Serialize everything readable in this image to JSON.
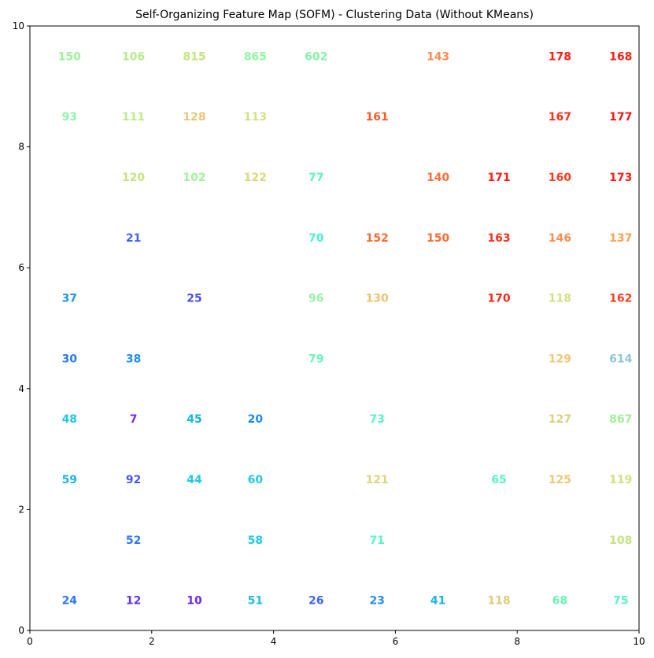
{
  "chart_data": {
    "type": "scatter",
    "title": "Self-Organizing Feature Map (SOFM) - Clustering Data (Without KMeans)",
    "xlabel": "",
    "ylabel": "",
    "xlim": [
      0,
      10
    ],
    "ylim": [
      0,
      10
    ],
    "xticks": [
      "0",
      "2",
      "4",
      "6",
      "8",
      "10"
    ],
    "yticks": [
      "0",
      "2",
      "4",
      "6",
      "8",
      "10"
    ],
    "grid": false,
    "points": [
      {
        "x": 0.65,
        "y": 9.5,
        "label": "150",
        "color": "#9bf29b"
      },
      {
        "x": 1.7,
        "y": 9.5,
        "label": "106",
        "color": "#b5ec8c"
      },
      {
        "x": 2.7,
        "y": 9.5,
        "label": "815",
        "color": "#c2e67e"
      },
      {
        "x": 3.7,
        "y": 9.5,
        "label": "865",
        "color": "#8ff7a0"
      },
      {
        "x": 4.7,
        "y": 9.5,
        "label": "602",
        "color": "#88f1aa"
      },
      {
        "x": 6.7,
        "y": 9.5,
        "label": "143",
        "color": "#ff8c4e"
      },
      {
        "x": 8.7,
        "y": 9.5,
        "label": "178",
        "color": "#ff1e14"
      },
      {
        "x": 9.7,
        "y": 9.5,
        "label": "168",
        "color": "#ff1e14"
      },
      {
        "x": 0.65,
        "y": 8.5,
        "label": "93",
        "color": "#8cf2aa"
      },
      {
        "x": 1.7,
        "y": 8.5,
        "label": "111",
        "color": "#bcec8b"
      },
      {
        "x": 2.7,
        "y": 8.5,
        "label": "128",
        "color": "#e6c878"
      },
      {
        "x": 3.7,
        "y": 8.5,
        "label": "113",
        "color": "#cfe382"
      },
      {
        "x": 5.7,
        "y": 8.5,
        "label": "161",
        "color": "#ff5a28"
      },
      {
        "x": 8.7,
        "y": 8.5,
        "label": "167",
        "color": "#ff2e1a"
      },
      {
        "x": 9.7,
        "y": 8.5,
        "label": "177",
        "color": "#ff1410"
      },
      {
        "x": 1.7,
        "y": 7.5,
        "label": "120",
        "color": "#c6e280"
      },
      {
        "x": 2.7,
        "y": 7.5,
        "label": "102",
        "color": "#a4f29a"
      },
      {
        "x": 3.7,
        "y": 7.5,
        "label": "122",
        "color": "#dcd77e"
      },
      {
        "x": 4.7,
        "y": 7.5,
        "label": "77",
        "color": "#5ef2c2"
      },
      {
        "x": 6.7,
        "y": 7.5,
        "label": "140",
        "color": "#ff6e3a"
      },
      {
        "x": 7.7,
        "y": 7.5,
        "label": "171",
        "color": "#ff1e14"
      },
      {
        "x": 8.7,
        "y": 7.5,
        "label": "160",
        "color": "#ff3c20"
      },
      {
        "x": 9.7,
        "y": 7.5,
        "label": "173",
        "color": "#ff1e14"
      },
      {
        "x": 1.7,
        "y": 6.5,
        "label": "21",
        "color": "#3c64ff"
      },
      {
        "x": 4.7,
        "y": 6.5,
        "label": "70",
        "color": "#4ef0d0"
      },
      {
        "x": 5.7,
        "y": 6.5,
        "label": "152",
        "color": "#ff6a32"
      },
      {
        "x": 6.7,
        "y": 6.5,
        "label": "150",
        "color": "#ff6a32"
      },
      {
        "x": 7.7,
        "y": 6.5,
        "label": "163",
        "color": "#ff2e1a"
      },
      {
        "x": 8.7,
        "y": 6.5,
        "label": "146",
        "color": "#ff8c50"
      },
      {
        "x": 9.7,
        "y": 6.5,
        "label": "137",
        "color": "#ffa050"
      },
      {
        "x": 0.65,
        "y": 5.5,
        "label": "37",
        "color": "#1e96e6"
      },
      {
        "x": 2.7,
        "y": 5.5,
        "label": "25",
        "color": "#4650f0"
      },
      {
        "x": 4.7,
        "y": 5.5,
        "label": "96",
        "color": "#96f2a2"
      },
      {
        "x": 5.7,
        "y": 5.5,
        "label": "130",
        "color": "#f0c070"
      },
      {
        "x": 7.7,
        "y": 5.5,
        "label": "170",
        "color": "#ff2814"
      },
      {
        "x": 8.7,
        "y": 5.5,
        "label": "118",
        "color": "#cde282"
      },
      {
        "x": 9.7,
        "y": 5.5,
        "label": "162",
        "color": "#ff3c1e"
      },
      {
        "x": 0.65,
        "y": 4.5,
        "label": "30",
        "color": "#2a78f0"
      },
      {
        "x": 1.7,
        "y": 4.5,
        "label": "38",
        "color": "#1e8cf0"
      },
      {
        "x": 4.7,
        "y": 4.5,
        "label": "79",
        "color": "#6cf2b8"
      },
      {
        "x": 8.7,
        "y": 4.5,
        "label": "129",
        "color": "#ecc878"
      },
      {
        "x": 9.7,
        "y": 4.5,
        "label": "614",
        "color": "#8cc8d8"
      },
      {
        "x": 0.65,
        "y": 3.5,
        "label": "48",
        "color": "#1ec8e6"
      },
      {
        "x": 1.7,
        "y": 3.5,
        "label": "7",
        "color": "#7828f0"
      },
      {
        "x": 2.7,
        "y": 3.5,
        "label": "45",
        "color": "#14b4e6"
      },
      {
        "x": 3.7,
        "y": 3.5,
        "label": "20",
        "color": "#148cf0"
      },
      {
        "x": 5.7,
        "y": 3.5,
        "label": "73",
        "color": "#5af2c8"
      },
      {
        "x": 8.7,
        "y": 3.5,
        "label": "127",
        "color": "#dcd07c"
      },
      {
        "x": 9.7,
        "y": 3.5,
        "label": "867",
        "color": "#a0ee98"
      },
      {
        "x": 0.65,
        "y": 2.5,
        "label": "59",
        "color": "#1eb4e6"
      },
      {
        "x": 1.7,
        "y": 2.5,
        "label": "92",
        "color": "#4a5af0"
      },
      {
        "x": 2.7,
        "y": 2.5,
        "label": "44",
        "color": "#1ec8e6"
      },
      {
        "x": 3.7,
        "y": 2.5,
        "label": "60",
        "color": "#1ec8e6"
      },
      {
        "x": 5.7,
        "y": 2.5,
        "label": "121",
        "color": "#dcd77e"
      },
      {
        "x": 7.7,
        "y": 2.5,
        "label": "65",
        "color": "#5af2c8"
      },
      {
        "x": 8.7,
        "y": 2.5,
        "label": "125",
        "color": "#ecc878"
      },
      {
        "x": 9.7,
        "y": 2.5,
        "label": "119",
        "color": "#cde282"
      },
      {
        "x": 1.7,
        "y": 1.5,
        "label": "52",
        "color": "#2a78f0"
      },
      {
        "x": 3.7,
        "y": 1.5,
        "label": "58",
        "color": "#1ec8e6"
      },
      {
        "x": 5.7,
        "y": 1.5,
        "label": "71",
        "color": "#5af2c8"
      },
      {
        "x": 9.7,
        "y": 1.5,
        "label": "108",
        "color": "#c6e280"
      },
      {
        "x": 0.65,
        "y": 0.5,
        "label": "24",
        "color": "#2a78f0"
      },
      {
        "x": 1.7,
        "y": 0.5,
        "label": "12",
        "color": "#6432f0"
      },
      {
        "x": 2.7,
        "y": 0.5,
        "label": "10",
        "color": "#6e28f0"
      },
      {
        "x": 3.7,
        "y": 0.5,
        "label": "51",
        "color": "#1ebee6"
      },
      {
        "x": 4.7,
        "y": 0.5,
        "label": "26",
        "color": "#3c64ff"
      },
      {
        "x": 5.7,
        "y": 0.5,
        "label": "23",
        "color": "#2a8cf0"
      },
      {
        "x": 6.7,
        "y": 0.5,
        "label": "41",
        "color": "#14b4e6"
      },
      {
        "x": 7.7,
        "y": 0.5,
        "label": "118",
        "color": "#dccc78"
      },
      {
        "x": 8.7,
        "y": 0.5,
        "label": "68",
        "color": "#6cf2b8"
      },
      {
        "x": 9.7,
        "y": 0.5,
        "label": "75",
        "color": "#5af2c8"
      }
    ]
  }
}
